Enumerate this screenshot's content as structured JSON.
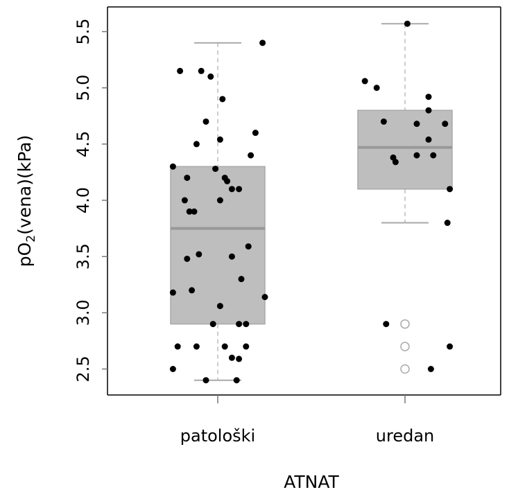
{
  "chart_data": {
    "type": "boxplot",
    "xlabel": "ATNAT",
    "ylabel": {
      "prefix": "pO",
      "subscript": "2",
      "suffix": "(vena)(kPa)"
    },
    "ylim": [
      2.4,
      5.66
    ],
    "yticks": [
      "2.5",
      "3.0",
      "3.5",
      "4.0",
      "4.5",
      "5.0",
      "5.5"
    ],
    "categories": [
      "patološki",
      "uredan"
    ],
    "boxes": [
      {
        "category": "patološki",
        "whisker_low": 2.4,
        "q1": 2.9,
        "median": 3.75,
        "q3": 4.3,
        "whisker_high": 5.4,
        "outliers": []
      },
      {
        "category": "uredan",
        "whisker_low": 3.8,
        "q1": 4.1,
        "median": 4.47,
        "q3": 4.8,
        "whisker_high": 5.57,
        "outliers": [
          2.9,
          2.7,
          2.5
        ]
      }
    ],
    "points": [
      {
        "group": "patološki",
        "jitter": -0.16,
        "value": 5.15
      },
      {
        "group": "patološki",
        "jitter": -0.07,
        "value": 5.15
      },
      {
        "group": "patološki",
        "jitter": -0.03,
        "value": 5.1
      },
      {
        "group": "patološki",
        "jitter": 0.02,
        "value": 4.9
      },
      {
        "group": "patološki",
        "jitter": 0.19,
        "value": 5.4
      },
      {
        "group": "patološki",
        "jitter": -0.05,
        "value": 4.7
      },
      {
        "group": "patološki",
        "jitter": 0.16,
        "value": 4.6
      },
      {
        "group": "patološki",
        "jitter": 0.01,
        "value": 4.54
      },
      {
        "group": "patološki",
        "jitter": -0.09,
        "value": 4.5
      },
      {
        "group": "patološki",
        "jitter": 0.14,
        "value": 4.4
      },
      {
        "group": "patološki",
        "jitter": -0.19,
        "value": 4.3
      },
      {
        "group": "patološki",
        "jitter": -0.01,
        "value": 4.28
      },
      {
        "group": "patološki",
        "jitter": -0.13,
        "value": 4.2
      },
      {
        "group": "patološki",
        "jitter": 0.03,
        "value": 4.2
      },
      {
        "group": "patološki",
        "jitter": 0.04,
        "value": 4.17
      },
      {
        "group": "patološki",
        "jitter": 0.06,
        "value": 4.1
      },
      {
        "group": "patološki",
        "jitter": 0.09,
        "value": 4.1
      },
      {
        "group": "patološki",
        "jitter": -0.14,
        "value": 4.0
      },
      {
        "group": "patološki",
        "jitter": 0.01,
        "value": 4.0
      },
      {
        "group": "patološki",
        "jitter": -0.12,
        "value": 3.9
      },
      {
        "group": "patološki",
        "jitter": -0.1,
        "value": 3.9
      },
      {
        "group": "patološki",
        "jitter": 0.13,
        "value": 3.59
      },
      {
        "group": "patološki",
        "jitter": -0.08,
        "value": 3.52
      },
      {
        "group": "patološki",
        "jitter": 0.06,
        "value": 3.5
      },
      {
        "group": "patološki",
        "jitter": -0.13,
        "value": 3.48
      },
      {
        "group": "patološki",
        "jitter": 0.1,
        "value": 3.3
      },
      {
        "group": "patološki",
        "jitter": -0.11,
        "value": 3.2
      },
      {
        "group": "patološki",
        "jitter": -0.19,
        "value": 3.18
      },
      {
        "group": "patološki",
        "jitter": 0.2,
        "value": 3.14
      },
      {
        "group": "patološki",
        "jitter": 0.01,
        "value": 3.06
      },
      {
        "group": "patološki",
        "jitter": -0.02,
        "value": 2.9
      },
      {
        "group": "patološki",
        "jitter": 0.09,
        "value": 2.9
      },
      {
        "group": "patološki",
        "jitter": 0.12,
        "value": 2.9
      },
      {
        "group": "patološki",
        "jitter": -0.17,
        "value": 2.7
      },
      {
        "group": "patološki",
        "jitter": -0.09,
        "value": 2.7
      },
      {
        "group": "patološki",
        "jitter": 0.03,
        "value": 2.7
      },
      {
        "group": "patološki",
        "jitter": 0.12,
        "value": 2.7
      },
      {
        "group": "patološki",
        "jitter": 0.06,
        "value": 2.6
      },
      {
        "group": "patološki",
        "jitter": 0.09,
        "value": 2.59
      },
      {
        "group": "patološki",
        "jitter": -0.19,
        "value": 2.5
      },
      {
        "group": "patološki",
        "jitter": -0.05,
        "value": 2.4
      },
      {
        "group": "patološki",
        "jitter": 0.08,
        "value": 2.4
      },
      {
        "group": "uredan",
        "jitter": -0.17,
        "value": 5.06
      },
      {
        "group": "uredan",
        "jitter": -0.12,
        "value": 5.0
      },
      {
        "group": "uredan",
        "jitter": 0.01,
        "value": 5.57
      },
      {
        "group": "uredan",
        "jitter": 0.1,
        "value": 4.92
      },
      {
        "group": "uredan",
        "jitter": 0.1,
        "value": 4.8
      },
      {
        "group": "uredan",
        "jitter": -0.09,
        "value": 4.7
      },
      {
        "group": "uredan",
        "jitter": 0.05,
        "value": 4.68
      },
      {
        "group": "uredan",
        "jitter": 0.17,
        "value": 4.68
      },
      {
        "group": "uredan",
        "jitter": 0.1,
        "value": 4.54
      },
      {
        "group": "uredan",
        "jitter": -0.05,
        "value": 4.38
      },
      {
        "group": "uredan",
        "jitter": -0.04,
        "value": 4.34
      },
      {
        "group": "uredan",
        "jitter": 0.05,
        "value": 4.4
      },
      {
        "group": "uredan",
        "jitter": 0.12,
        "value": 4.4
      },
      {
        "group": "uredan",
        "jitter": 0.19,
        "value": 4.1
      },
      {
        "group": "uredan",
        "jitter": 0.18,
        "value": 3.8
      },
      {
        "group": "uredan",
        "jitter": -0.08,
        "value": 2.9
      },
      {
        "group": "uredan",
        "jitter": 0.19,
        "value": 2.7
      },
      {
        "group": "uredan",
        "jitter": 0.11,
        "value": 2.5
      }
    ],
    "grid": false,
    "legend": "none",
    "colors": {
      "box_fill": "#bebebe",
      "box_stroke": "#a9a9a9",
      "median": "#999999",
      "whisker": "#cccccc",
      "point": "#000000",
      "outlier": "#aaaaaa",
      "axis": "#000000"
    }
  }
}
